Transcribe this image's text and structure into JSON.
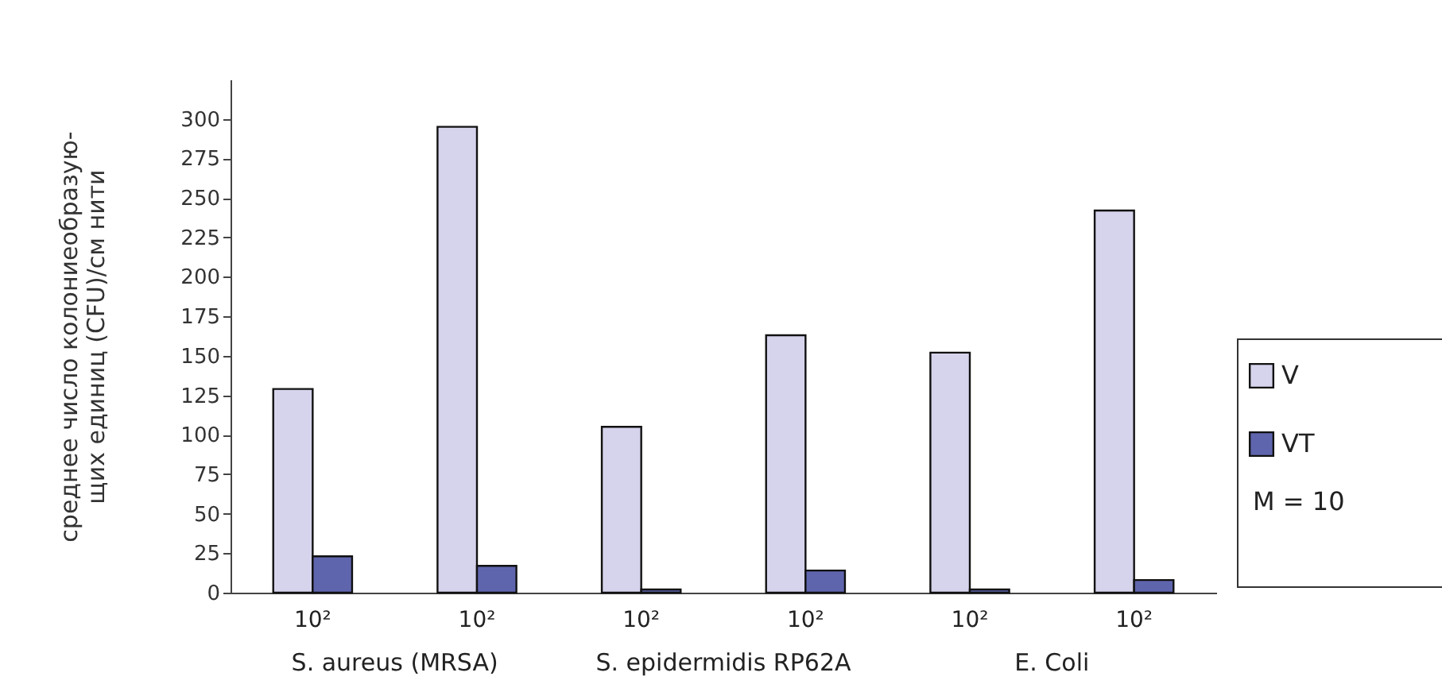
{
  "chart_data": {
    "type": "bar",
    "ylabel": "среднее число колониеобразую-\nщих единиц (CFU)/см нити",
    "categories": [
      "10²",
      "10²",
      "10²",
      "10²",
      "10²",
      "10²"
    ],
    "series": [
      {
        "name": "V",
        "color": "#d6d4ec",
        "values": [
          129,
          295,
          105,
          163,
          152,
          242
        ]
      },
      {
        "name": "VT",
        "color": "#5f65ad",
        "values": [
          23,
          17,
          2,
          14,
          2,
          8
        ]
      }
    ],
    "ylim": [
      0,
      325
    ],
    "yticks": [
      0,
      25,
      50,
      75,
      100,
      125,
      150,
      175,
      200,
      225,
      250,
      275,
      300
    ],
    "legend": "right",
    "annotations": [
      "S. aureus (MRSA)",
      "S. epidermidis RP62A",
      "E. Coli",
      "M = 10"
    ]
  }
}
